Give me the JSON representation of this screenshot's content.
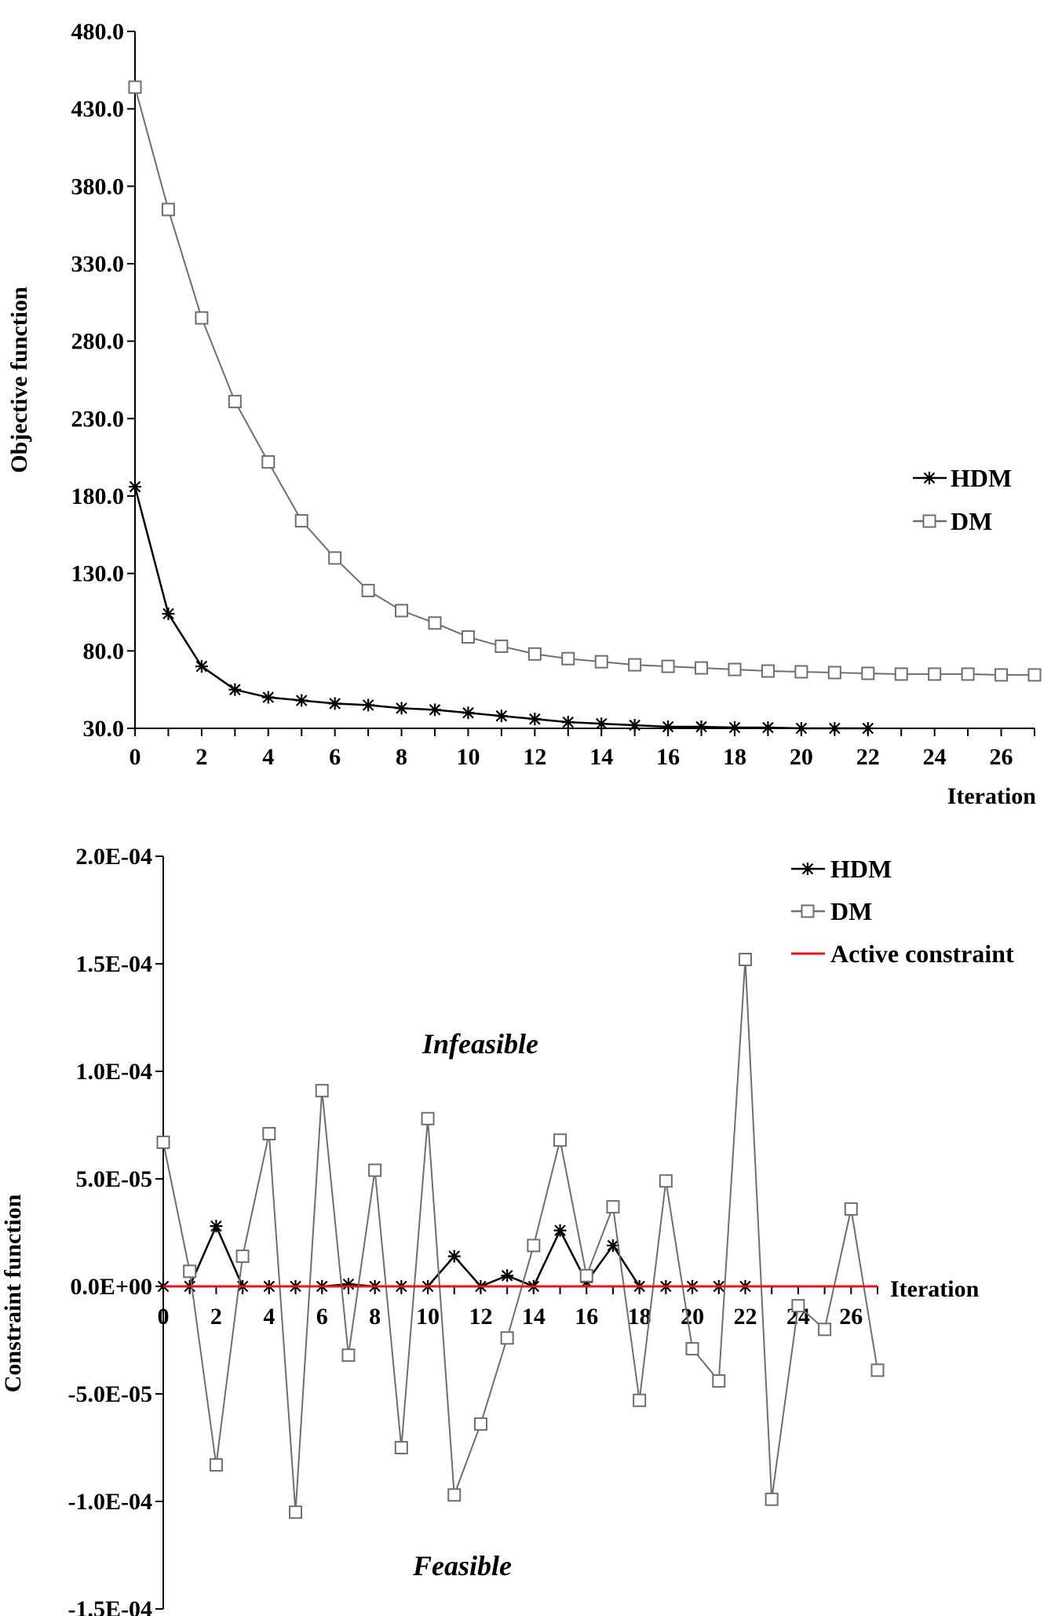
{
  "chart_data": [
    {
      "type": "line",
      "xlabel": "Iteration",
      "ylabel": "Objective function",
      "xlim": [
        0,
        27
      ],
      "ylim": [
        30,
        480
      ],
      "xticks": [
        0,
        2,
        4,
        6,
        8,
        10,
        12,
        14,
        16,
        18,
        20,
        22,
        24,
        26
      ],
      "yticks": [
        "30.0",
        "80.0",
        "130.0",
        "180.0",
        "230.0",
        "280.0",
        "330.0",
        "380.0",
        "430.0",
        "480.0"
      ],
      "legend_position": "right",
      "series": [
        {
          "name": "HDM",
          "marker": "asterisk",
          "color": "#000000",
          "x": [
            0,
            1,
            2,
            3,
            4,
            5,
            6,
            7,
            8,
            9,
            10,
            11,
            12,
            13,
            14,
            15,
            16,
            17,
            18,
            19,
            20,
            21,
            22
          ],
          "values": [
            186,
            104,
            70,
            55,
            50,
            48,
            46,
            45,
            43,
            42,
            40,
            38,
            36,
            34,
            33,
            32,
            31,
            31,
            30.5,
            30.5,
            30,
            30,
            30
          ]
        },
        {
          "name": "DM",
          "marker": "square",
          "color": "#6e6e6e",
          "x": [
            0,
            1,
            2,
            3,
            4,
            5,
            6,
            7,
            8,
            9,
            10,
            11,
            12,
            13,
            14,
            15,
            16,
            17,
            18,
            19,
            20,
            21,
            22,
            23,
            24,
            25,
            26,
            27
          ],
          "values": [
            444,
            365,
            295,
            241,
            202,
            164,
            140,
            119,
            106,
            98,
            89,
            83,
            78,
            75,
            73,
            71,
            70,
            69,
            68,
            67,
            66.5,
            66,
            65.5,
            65,
            65,
            65,
            64.5,
            64.5
          ]
        }
      ]
    },
    {
      "type": "line",
      "xlabel": "Iteration",
      "ylabel": "Constraint  function",
      "xlim": [
        0,
        27
      ],
      "ylim": [
        -0.00015,
        0.0002
      ],
      "xticks": [
        0,
        2,
        4,
        6,
        8,
        10,
        12,
        14,
        16,
        18,
        20,
        22,
        24,
        26
      ],
      "yticks": [
        "-1.5E-04",
        "-1.0E-04",
        "-5.0E-05",
        "0.0E+00",
        "5.0E-05",
        "1.0E-04",
        "1.5E-04",
        "2.0E-04"
      ],
      "legend_position": "top-right",
      "annotations": {
        "upper": "Infeasible",
        "lower": "Feasible"
      },
      "active_constraint": {
        "name": "Active constraint",
        "value": 0,
        "color": "#e8141b"
      },
      "series": [
        {
          "name": "HDM",
          "marker": "asterisk",
          "color": "#000000",
          "x": [
            0,
            1,
            2,
            3,
            4,
            5,
            6,
            7,
            8,
            9,
            10,
            11,
            12,
            13,
            14,
            15,
            16,
            17,
            18,
            19,
            20,
            21,
            22
          ],
          "values": [
            0,
            0,
            2.8e-05,
            0,
            0,
            0,
            0,
            1e-06,
            0,
            0,
            0,
            1.4e-05,
            0,
            5e-06,
            0,
            2.6e-05,
            2e-06,
            1.9e-05,
            0,
            0,
            0,
            0,
            0
          ]
        },
        {
          "name": "DM",
          "marker": "square",
          "color": "#6e6e6e",
          "x": [
            0,
            1,
            2,
            3,
            4,
            5,
            6,
            7,
            8,
            9,
            10,
            11,
            12,
            13,
            14,
            15,
            16,
            17,
            18,
            19,
            20,
            21,
            22,
            23,
            24,
            25,
            26,
            27
          ],
          "values": [
            6.7e-05,
            7e-06,
            -8.3e-05,
            1.4e-05,
            7.1e-05,
            -0.000105,
            9.1e-05,
            -3.2e-05,
            5.4e-05,
            -7.5e-05,
            7.8e-05,
            -9.7e-05,
            -6.4e-05,
            -2.4e-05,
            1.9e-05,
            6.8e-05,
            5e-06,
            3.7e-05,
            -5.3e-05,
            4.9e-05,
            -2.9e-05,
            -4.4e-05,
            0.000152,
            -9.9e-05,
            -9e-06,
            -2e-05,
            3.6e-05,
            -3.9e-05
          ]
        }
      ]
    }
  ]
}
